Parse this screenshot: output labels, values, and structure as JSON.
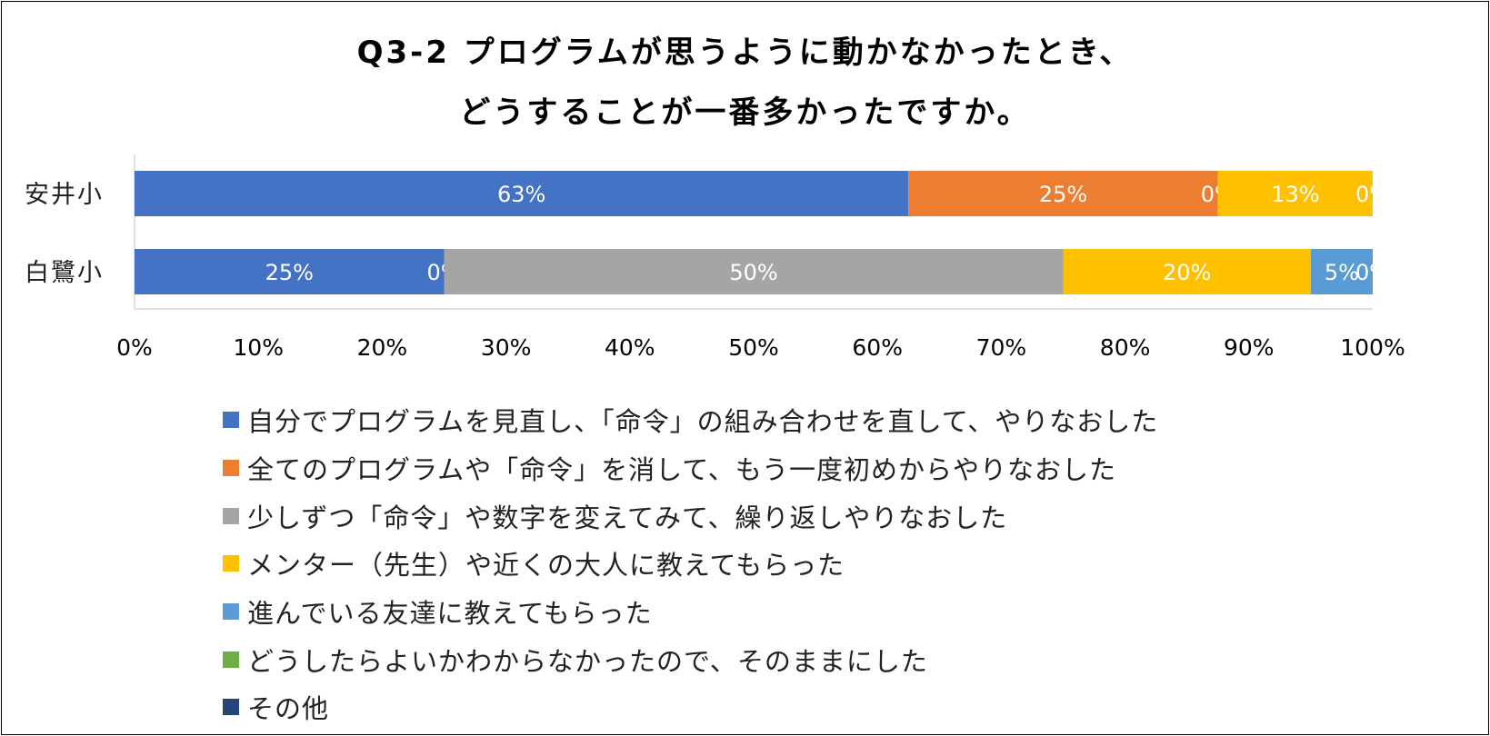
{
  "chart_data": {
    "type": "bar",
    "orientation": "horizontal",
    "stacked": "percent",
    "title_lines": [
      "Q3-2 プログラムが思うように動かなかったとき、",
      "どうすることが一番多かったですか。"
    ],
    "categories": [
      "安井小",
      "白鷺小"
    ],
    "series": [
      {
        "name": "自分でプログラムを見直し、「命令」の組み合わせを直して、やりなおした",
        "color": "#4472C4",
        "values": [
          62.5,
          25
        ],
        "labels": [
          "63%",
          "25%"
        ]
      },
      {
        "name": "全てのプログラムや「命令」を消して、もう一度初めからやりなおした",
        "color": "#ED7D31",
        "values": [
          25,
          0
        ],
        "labels": [
          "25%",
          "0%"
        ]
      },
      {
        "name": "少しずつ「命令」や数字を変えてみて、繰り返しやりなおした",
        "color": "#A5A5A5",
        "values": [
          0,
          50
        ],
        "labels": [
          "0%",
          "50%"
        ]
      },
      {
        "name": "メンター（先生）や近くの大人に教えてもらった",
        "color": "#FFC000",
        "values": [
          12.5,
          20
        ],
        "labels": [
          "13%",
          "20%"
        ]
      },
      {
        "name": "進んでいる友達に教えてもらった",
        "color": "#5B9BD5",
        "values": [
          0,
          5
        ],
        "labels": [
          "0%",
          "5%"
        ]
      },
      {
        "name": "どうしたらよいかわからなかったので、そのままにした",
        "color": "#70AD47",
        "values": [
          0,
          0
        ],
        "labels": [
          "",
          "0%"
        ]
      },
      {
        "name": "その他",
        "color": "#264478",
        "values": [
          0,
          0
        ],
        "labels": [
          "",
          ""
        ]
      }
    ],
    "xlim": [
      0,
      100
    ],
    "xticks": [
      "0%",
      "10%",
      "20%",
      "30%",
      "40%",
      "50%",
      "60%",
      "70%",
      "80%",
      "90%",
      "100%"
    ],
    "grid": false,
    "legend_position": "bottom"
  }
}
